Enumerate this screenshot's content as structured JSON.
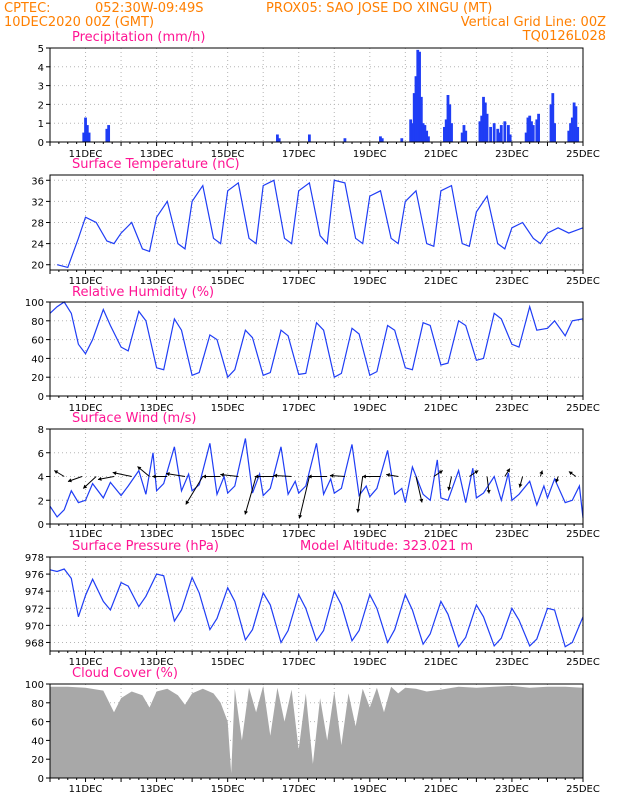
{
  "header": {
    "source": "CPTEC:",
    "coords": "052:30W-09:49S",
    "location": "PROX05: SAO JOSE DO XINGU (MT)",
    "run": "10DEC2020 00Z (GMT)",
    "grid_note": "Vertical Grid Line: 00Z",
    "model": "TQ0126L028"
  },
  "x_ticks": [
    "11DEC",
    "13DEC",
    "15DEC",
    "17DEC",
    "19DEC",
    "21DEC",
    "23DEC",
    "25DEC"
  ],
  "chart_data": [
    {
      "id": "precipitation",
      "type": "bar",
      "title": "Precipitation (mm/h)",
      "ylim": [
        0,
        5
      ],
      "yticks": [
        0,
        1,
        2,
        3,
        4,
        5
      ],
      "grid": true,
      "x": [
        10.95,
        11.0,
        11.05,
        11.1,
        11.6,
        11.65,
        16.4,
        16.45,
        17.3,
        18.3,
        19.3,
        19.35,
        19.9,
        20.15,
        20.2,
        20.25,
        20.3,
        20.35,
        20.4,
        20.45,
        20.5,
        20.55,
        20.6,
        20.65,
        21.1,
        21.15,
        21.2,
        21.25,
        21.3,
        21.6,
        21.65,
        21.7,
        22.1,
        22.15,
        22.2,
        22.25,
        22.3,
        22.4,
        22.5,
        22.6,
        22.65,
        22.7,
        22.8,
        22.9,
        22.95,
        23.4,
        23.45,
        23.5,
        23.55,
        23.6,
        23.7,
        23.75,
        24.1,
        24.15,
        24.2,
        24.6,
        24.65,
        24.7,
        24.75,
        24.8,
        24.85
      ],
      "values": [
        0.5,
        1.3,
        0.9,
        0.5,
        0.7,
        0.9,
        0.4,
        0.2,
        0.4,
        0.2,
        0.3,
        0.2,
        0.2,
        1.2,
        1.0,
        2.6,
        3.5,
        4.9,
        4.8,
        2.4,
        1.0,
        0.9,
        0.6,
        0.3,
        0.8,
        1.2,
        2.5,
        2.0,
        1.0,
        0.5,
        0.9,
        0.6,
        1.1,
        1.4,
        2.4,
        2.1,
        1.5,
        0.8,
        1.0,
        0.7,
        0.5,
        0.9,
        1.1,
        0.9,
        0.4,
        0.5,
        1.3,
        1.4,
        1.1,
        0.9,
        1.2,
        1.5,
        2.0,
        2.6,
        1.0,
        0.6,
        1.0,
        1.3,
        2.1,
        1.9,
        0.8
      ]
    },
    {
      "id": "temperature",
      "type": "line",
      "title": "Surface Temperature (nC)",
      "ylim": [
        19,
        37
      ],
      "yticks": [
        20,
        24,
        28,
        32,
        36
      ],
      "grid": true,
      "x": [
        10.2,
        10.5,
        10.8,
        11.0,
        11.3,
        11.6,
        11.8,
        12.0,
        12.3,
        12.6,
        12.8,
        13.0,
        13.3,
        13.6,
        13.8,
        14.0,
        14.3,
        14.6,
        14.8,
        15.0,
        15.3,
        15.6,
        15.8,
        16.0,
        16.3,
        16.6,
        16.8,
        17.0,
        17.3,
        17.6,
        17.8,
        18.0,
        18.3,
        18.6,
        18.8,
        19.0,
        19.3,
        19.6,
        19.8,
        20.0,
        20.3,
        20.6,
        20.8,
        21.0,
        21.3,
        21.6,
        21.8,
        22.0,
        22.3,
        22.6,
        22.8,
        23.0,
        23.3,
        23.6,
        23.8,
        24.0,
        24.3,
        24.6,
        24.8,
        25.0
      ],
      "values": [
        20,
        19.5,
        25,
        29,
        28,
        24.5,
        24,
        26,
        28,
        23,
        22.5,
        29,
        32,
        24,
        23,
        32,
        35,
        25,
        24,
        34,
        35.5,
        25,
        24,
        35,
        36,
        25,
        24,
        34,
        35.5,
        25.5,
        24,
        36,
        35.5,
        25,
        24,
        33,
        34,
        25,
        24,
        32,
        34,
        24,
        23.5,
        34,
        35,
        24,
        23.5,
        30,
        33,
        24,
        23,
        27,
        28,
        25,
        24,
        26,
        27,
        26,
        26.5,
        27
      ]
    },
    {
      "id": "humidity",
      "type": "line",
      "title": "Relative Humidity (%)",
      "ylim": [
        0,
        100
      ],
      "yticks": [
        0,
        20,
        40,
        60,
        80,
        100
      ],
      "grid": true,
      "x": [
        10.0,
        10.2,
        10.4,
        10.6,
        10.8,
        11.0,
        11.2,
        11.5,
        11.7,
        12.0,
        12.2,
        12.5,
        12.7,
        13.0,
        13.2,
        13.5,
        13.7,
        14.0,
        14.2,
        14.5,
        14.7,
        15.0,
        15.2,
        15.5,
        15.7,
        16.0,
        16.2,
        16.5,
        16.7,
        17.0,
        17.2,
        17.5,
        17.7,
        18.0,
        18.2,
        18.5,
        18.7,
        19.0,
        19.2,
        19.5,
        19.7,
        20.0,
        20.2,
        20.5,
        20.7,
        21.0,
        21.2,
        21.5,
        21.7,
        22.0,
        22.2,
        22.5,
        22.7,
        23.0,
        23.2,
        23.5,
        23.7,
        24.0,
        24.2,
        24.5,
        24.7,
        25.0
      ],
      "values": [
        88,
        95,
        100,
        88,
        55,
        45,
        60,
        92,
        75,
        52,
        48,
        90,
        80,
        30,
        28,
        82,
        70,
        22,
        25,
        65,
        60,
        20,
        28,
        70,
        62,
        22,
        25,
        70,
        64,
        23,
        24,
        78,
        70,
        20,
        24,
        72,
        66,
        22,
        26,
        75,
        70,
        30,
        28,
        78,
        75,
        33,
        35,
        80,
        75,
        38,
        40,
        88,
        82,
        55,
        52,
        95,
        70,
        72,
        80,
        64,
        80,
        82
      ]
    },
    {
      "id": "wind",
      "type": "line",
      "title": "Surface Wind (m/s)",
      "ylim": [
        0,
        8
      ],
      "yticks": [
        0,
        2,
        4,
        6,
        8
      ],
      "grid": true,
      "x": [
        10.0,
        10.2,
        10.4,
        10.6,
        10.8,
        11.0,
        11.2,
        11.5,
        11.7,
        12.0,
        12.2,
        12.5,
        12.7,
        12.9,
        13.0,
        13.2,
        13.5,
        13.7,
        13.9,
        14.0,
        14.2,
        14.5,
        14.7,
        14.9,
        15.0,
        15.2,
        15.5,
        15.7,
        15.9,
        16.0,
        16.2,
        16.5,
        16.7,
        16.9,
        17.0,
        17.2,
        17.5,
        17.7,
        17.9,
        18.0,
        18.2,
        18.5,
        18.7,
        18.9,
        19.0,
        19.2,
        19.5,
        19.7,
        19.9,
        20.0,
        20.2,
        20.5,
        20.7,
        20.9,
        21.0,
        21.2,
        21.5,
        21.7,
        21.9,
        22.0,
        22.2,
        22.5,
        22.7,
        22.9,
        23.0,
        23.2,
        23.5,
        23.7,
        23.9,
        24.0,
        24.2,
        24.5,
        24.7,
        24.9,
        25.0
      ],
      "values": [
        1.5,
        0.6,
        1.2,
        2.8,
        1.8,
        2.0,
        3.4,
        2.2,
        3.5,
        2.4,
        3.2,
        4.5,
        2.5,
        6.0,
        2.8,
        3.4,
        6.5,
        2.8,
        4.2,
        2.8,
        3.3,
        6.8,
        2.5,
        4.0,
        2.6,
        3.2,
        7.2,
        2.6,
        4.2,
        2.4,
        3.0,
        6.5,
        2.5,
        3.6,
        2.6,
        3.2,
        6.8,
        2.5,
        3.8,
        2.6,
        3.0,
        6.7,
        2.4,
        3.2,
        2.3,
        3.0,
        6.2,
        2.5,
        3.0,
        1.8,
        4.8,
        2.5,
        2.0,
        5.4,
        2.2,
        2.0,
        4.5,
        1.8,
        4.7,
        2.2,
        2.6,
        4.0,
        2.0,
        4.3,
        2.0,
        2.5,
        3.6,
        1.6,
        3.2,
        2.2,
        3.8,
        1.8,
        2.0,
        3.2,
        0.5
      ],
      "vectors": [
        {
          "x": 10.4,
          "u": -1.0,
          "v": 0.6
        },
        {
          "x": 10.9,
          "u": -1.4,
          "v": -0.5
        },
        {
          "x": 11.3,
          "u": -1.3,
          "v": -1.2
        },
        {
          "x": 11.8,
          "u": -1.6,
          "v": -0.3
        },
        {
          "x": 12.3,
          "u": -1.9,
          "v": 0.4
        },
        {
          "x": 12.8,
          "u": -1.2,
          "v": 1.0
        },
        {
          "x": 13.3,
          "u": -1.5,
          "v": 0.0
        },
        {
          "x": 13.8,
          "u": -1.9,
          "v": 0.3
        },
        {
          "x": 14.3,
          "u": -1.7,
          "v": -2.8
        },
        {
          "x": 14.8,
          "u": -1.8,
          "v": 0.0
        },
        {
          "x": 15.3,
          "u": -1.8,
          "v": 0.2
        },
        {
          "x": 15.8,
          "u": -1.1,
          "v": -3.8
        },
        {
          "x": 16.3,
          "u": -1.9,
          "v": 0.0
        },
        {
          "x": 16.8,
          "u": -1.8,
          "v": 0.1
        },
        {
          "x": 17.3,
          "u": -1.0,
          "v": -4.2
        },
        {
          "x": 17.8,
          "u": -1.9,
          "v": 0.0
        },
        {
          "x": 18.3,
          "u": -1.5,
          "v": 0.1
        },
        {
          "x": 18.8,
          "u": -0.5,
          "v": -3.6
        },
        {
          "x": 19.3,
          "u": -1.8,
          "v": 0.0
        },
        {
          "x": 19.8,
          "u": -1.2,
          "v": 0.2
        },
        {
          "x": 20.3,
          "u": 0.6,
          "v": -2.6
        },
        {
          "x": 20.8,
          "u": 0.9,
          "v": 0.6
        },
        {
          "x": 21.3,
          "u": -0.3,
          "v": -1.4
        },
        {
          "x": 21.8,
          "u": 0.9,
          "v": 0.6
        },
        {
          "x": 22.3,
          "u": 0.2,
          "v": -1.7
        },
        {
          "x": 22.8,
          "u": 0.5,
          "v": 0.8
        },
        {
          "x": 23.3,
          "u": -0.3,
          "v": -1.1
        },
        {
          "x": 23.8,
          "u": 0.2,
          "v": 0.6
        },
        {
          "x": 24.3,
          "u": -0.2,
          "v": -0.6
        },
        {
          "x": 24.8,
          "u": -0.7,
          "v": 0.5
        }
      ]
    },
    {
      "id": "pressure",
      "type": "line",
      "title": "Surface Pressure (hPa)",
      "note": "Model Altitude: 323.021 m",
      "ylim": [
        967,
        978
      ],
      "yticks": [
        968,
        970,
        972,
        974,
        976,
        978
      ],
      "grid": true,
      "x": [
        10.0,
        10.2,
        10.4,
        10.6,
        10.8,
        11.0,
        11.2,
        11.5,
        11.7,
        12.0,
        12.2,
        12.5,
        12.7,
        13.0,
        13.2,
        13.5,
        13.7,
        14.0,
        14.2,
        14.5,
        14.7,
        15.0,
        15.2,
        15.5,
        15.7,
        16.0,
        16.2,
        16.5,
        16.7,
        17.0,
        17.2,
        17.5,
        17.7,
        18.0,
        18.2,
        18.5,
        18.7,
        19.0,
        19.2,
        19.5,
        19.7,
        20.0,
        20.2,
        20.5,
        20.7,
        21.0,
        21.2,
        21.5,
        21.7,
        22.0,
        22.2,
        22.5,
        22.7,
        23.0,
        23.2,
        23.5,
        23.7,
        24.0,
        24.2,
        24.5,
        24.7,
        25.0
      ],
      "values": [
        976.5,
        976.3,
        976.6,
        975.5,
        971.0,
        973.5,
        975.4,
        972.8,
        971.8,
        975.0,
        974.6,
        972.2,
        973.4,
        976.0,
        975.8,
        970.5,
        971.8,
        975.6,
        973.8,
        969.5,
        970.8,
        974.4,
        972.8,
        968.3,
        969.5,
        973.8,
        972.4,
        968.0,
        969.4,
        973.6,
        972.0,
        968.2,
        969.4,
        974.0,
        972.4,
        968.2,
        969.4,
        973.6,
        972.0,
        968.0,
        969.5,
        973.6,
        971.8,
        967.8,
        969.0,
        972.8,
        971.3,
        967.5,
        968.6,
        972.4,
        971.0,
        967.6,
        968.5,
        972.0,
        970.6,
        967.6,
        968.4,
        972.0,
        971.8,
        967.5,
        968.0,
        971.0
      ]
    },
    {
      "id": "cloud",
      "type": "area",
      "title": "Cloud Cover (%)",
      "ylim": [
        0,
        100
      ],
      "yticks": [
        0,
        20,
        40,
        60,
        80,
        100
      ],
      "grid": true,
      "x": [
        10.0,
        10.5,
        11.0,
        11.5,
        11.8,
        12.0,
        12.3,
        12.6,
        12.8,
        13.0,
        13.3,
        13.6,
        13.8,
        14.0,
        14.3,
        14.6,
        14.8,
        15.0,
        15.1,
        15.2,
        15.4,
        15.6,
        15.8,
        16.0,
        16.2,
        16.4,
        16.6,
        16.8,
        17.0,
        17.2,
        17.4,
        17.6,
        17.8,
        18.0,
        18.2,
        18.4,
        18.6,
        18.8,
        19.0,
        19.2,
        19.4,
        19.6,
        19.8,
        20.0,
        20.3,
        20.6,
        21.0,
        21.5,
        22.0,
        22.5,
        23.0,
        23.5,
        24.0,
        24.5,
        25.0
      ],
      "values": [
        97,
        97,
        96,
        93,
        70,
        85,
        92,
        88,
        75,
        92,
        95,
        88,
        78,
        90,
        95,
        90,
        80,
        60,
        5,
        95,
        40,
        96,
        70,
        98,
        45,
        96,
        60,
        94,
        30,
        90,
        15,
        85,
        40,
        92,
        35,
        90,
        55,
        95,
        75,
        96,
        70,
        97,
        90,
        96,
        95,
        92,
        94,
        97,
        96,
        97,
        98,
        96,
        97,
        97,
        96
      ]
    }
  ]
}
